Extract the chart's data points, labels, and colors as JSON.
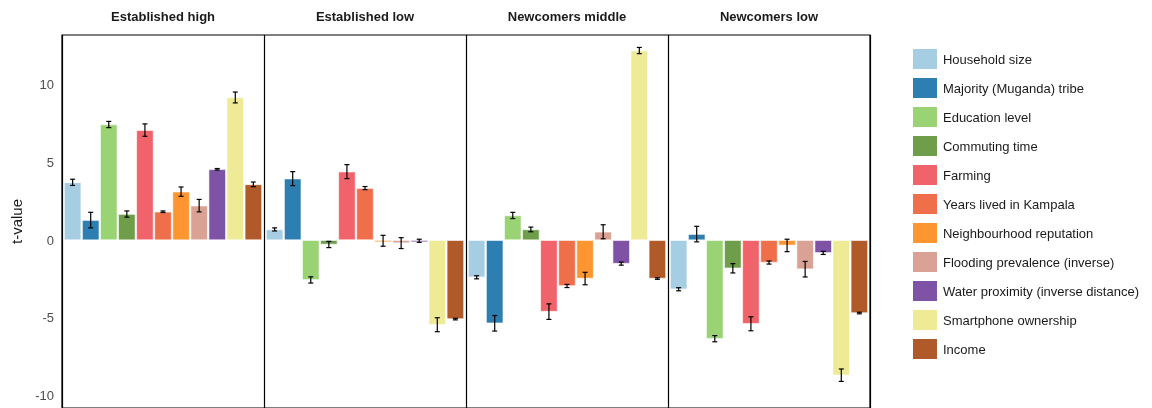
{
  "chart_data": {
    "type": "bar",
    "ylabel": "t-value",
    "categories": [
      "Established high",
      "Established low",
      "Newcomers middle",
      "Newcomers low"
    ],
    "ylim": [
      -10.8,
      13.2
    ],
    "yticks": [
      -10,
      -5,
      0,
      5,
      10
    ],
    "grid": false,
    "legend": "right",
    "series": [
      {
        "name": "Household size",
        "color": "#a6cee3",
        "values": [
          3.72,
          0.69,
          -2.39,
          -3.16
        ],
        "errors": [
          0.2,
          0.1,
          0.1,
          0.1
        ]
      },
      {
        "name": "Majority (Muganda) tribe",
        "color": "#2c7fb0",
        "values": [
          1.29,
          3.96,
          -5.35,
          0.39
        ],
        "errors": [
          0.5,
          0.45,
          0.5,
          0.5
        ]
      },
      {
        "name": "Education level",
        "color": "#9ad374",
        "values": [
          7.44,
          -2.56,
          1.59,
          -6.34
        ],
        "errors": [
          0.2,
          0.2,
          0.2,
          0.2
        ]
      },
      {
        "name": "Commuting time",
        "color": "#6e9e4a",
        "values": [
          1.68,
          -0.28,
          0.69,
          -1.81
        ],
        "errors": [
          0.2,
          0.2,
          0.15,
          0.3
        ]
      },
      {
        "name": "Farming",
        "color": "#f0636a",
        "values": [
          7.08,
          4.41,
          -4.6,
          -5.38
        ],
        "errors": [
          0.4,
          0.45,
          0.5,
          0.45
        ]
      },
      {
        "name": "Years lived in Kampala",
        "color": "#ef6f4a",
        "values": [
          1.83,
          3.35,
          -2.95,
          -1.44
        ],
        "errors": [
          0.05,
          0.1,
          0.1,
          0.1
        ]
      },
      {
        "name": "Neighbourhood reputation",
        "color": "#fd9630",
        "values": [
          3.12,
          -0.04,
          -2.47,
          -0.34
        ],
        "errors": [
          0.3,
          0.35,
          0.4,
          0.4
        ]
      },
      {
        "name": "Flooding prevalence (inverse)",
        "color": "#d9a294",
        "values": [
          2.22,
          -0.19,
          0.54,
          -1.87
        ],
        "errors": [
          0.4,
          0.35,
          0.45,
          0.5
        ]
      },
      {
        "name": "Water proximity (inverse distance)",
        "color": "#7e53a5",
        "values": [
          4.56,
          -0.04,
          -1.51,
          -0.82
        ],
        "errors": [
          0.05,
          0.1,
          0.1,
          0.1
        ]
      },
      {
        "name": "Smartphone ownership",
        "color": "#eeea96",
        "values": [
          9.18,
          -5.44,
          12.2,
          -8.69
        ],
        "errors": [
          0.35,
          0.45,
          0.2,
          0.4
        ]
      },
      {
        "name": "Income",
        "color": "#b05a2a",
        "values": [
          3.59,
          -5.08,
          -2.47,
          -4.69
        ],
        "errors": [
          0.15,
          0.05,
          0.05,
          0.05
        ]
      }
    ]
  }
}
